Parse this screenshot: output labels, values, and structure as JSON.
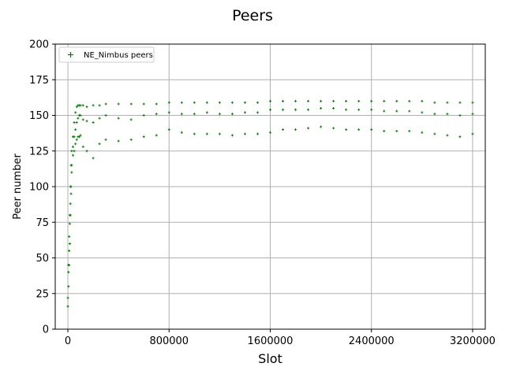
{
  "chart_data": {
    "type": "scatter",
    "title": "Peers",
    "xlabel": "Slot",
    "ylabel": "Peer number",
    "xlim": [
      -100000,
      3300000
    ],
    "ylim": [
      0,
      200
    ],
    "xticks": [
      0,
      800000,
      1600000,
      2400000,
      3200000
    ],
    "xtick_labels": [
      "0",
      "800000",
      "1600000",
      "2400000",
      "3200000"
    ],
    "yticks": [
      0,
      25,
      50,
      75,
      100,
      125,
      150,
      175,
      200
    ],
    "ytick_labels": [
      "0",
      "25",
      "50",
      "75",
      "100",
      "125",
      "150",
      "175",
      "200"
    ],
    "grid": true,
    "legend_position": "top-left",
    "marker": "+",
    "series": [
      {
        "name": "NE_Nimbus peers",
        "color": "#008000",
        "x": [
          0,
          5000,
          10000,
          15000,
          20000,
          25000,
          30000,
          40000,
          50000,
          60000,
          70000,
          80000,
          90000,
          100000,
          120000,
          150000,
          200000,
          250000,
          300000,
          400000,
          500000,
          600000,
          700000,
          800000,
          900000,
          1000000,
          1100000,
          1200000,
          1300000,
          1400000,
          1500000,
          1600000,
          1700000,
          1800000,
          1900000,
          2000000,
          2100000,
          2200000,
          2300000,
          2400000,
          2500000,
          2600000,
          2700000,
          2800000,
          2900000,
          3000000,
          3100000,
          3200000
        ],
        "y": [
          16,
          40,
          55,
          74,
          88,
          100,
          115,
          128,
          135,
          140,
          145,
          148,
          150,
          150,
          147,
          146,
          145,
          148,
          150,
          148,
          147,
          150,
          151,
          152,
          151,
          151,
          152,
          151,
          151,
          152,
          152,
          154,
          154,
          154,
          154,
          155,
          155,
          154,
          154,
          154,
          153,
          153,
          153,
          152,
          151,
          151,
          150,
          151
        ],
        "min_envelope": [
          16,
          30,
          45,
          60,
          80,
          95,
          110,
          122,
          125,
          130,
          133,
          135,
          135,
          136,
          128,
          125,
          120,
          130,
          133,
          132,
          133,
          135,
          136,
          140,
          138,
          137,
          137,
          137,
          136,
          137,
          137,
          138,
          140,
          140,
          141,
          142,
          141,
          140,
          140,
          140,
          139,
          139,
          139,
          138,
          137,
          136,
          135,
          137
        ],
        "max_envelope": [
          22,
          45,
          65,
          80,
          100,
          115,
          125,
          135,
          145,
          152,
          156,
          157,
          157,
          157,
          157,
          156,
          157,
          157,
          158,
          158,
          158,
          158,
          158,
          159,
          159,
          159,
          159,
          159,
          159,
          159,
          159,
          160,
          160,
          160,
          160,
          160,
          160,
          160,
          160,
          160,
          160,
          160,
          160,
          160,
          159,
          159,
          159,
          159
        ]
      }
    ]
  }
}
